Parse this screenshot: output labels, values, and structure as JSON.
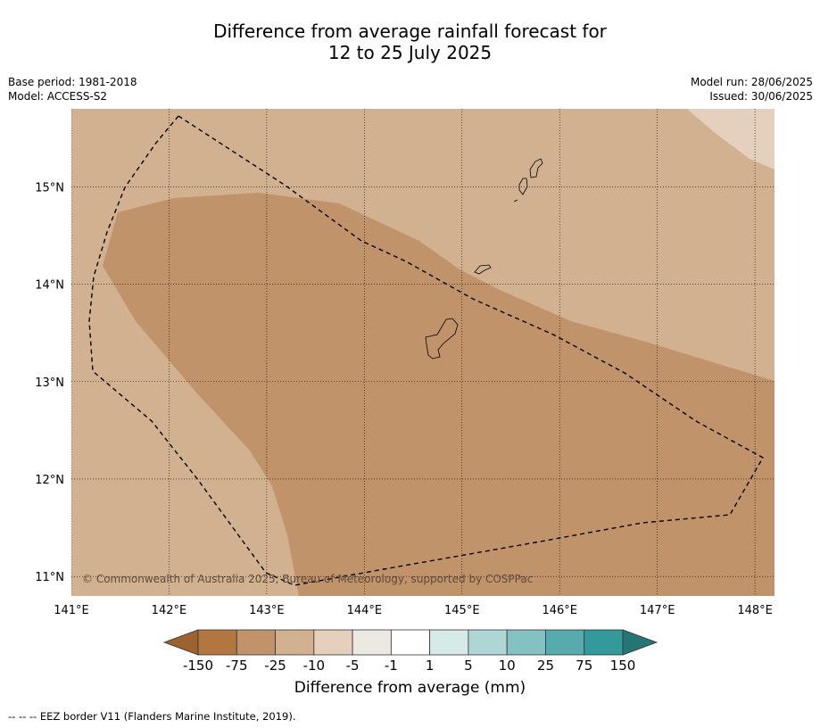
{
  "title": {
    "line1": "Difference from average rainfall forecast for",
    "line2": "12 to 25 July 2025"
  },
  "meta": {
    "base_period": "Base period: 1981-2018",
    "model": "Model: ACCESS-S2",
    "model_run": "Model run: 28/06/2025",
    "issued": "Issued: 30/06/2025"
  },
  "map": {
    "lon_range": [
      141.0,
      148.2
    ],
    "lat_range": [
      10.8,
      15.8
    ],
    "x_ticks": [
      "141°E",
      "142°E",
      "143°E",
      "144°E",
      "145°E",
      "146°E",
      "147°E",
      "148°E"
    ],
    "y_ticks": [
      "15°N",
      "14°N",
      "13°N",
      "12°N",
      "11°N"
    ],
    "copyright": "© Commonwealth of Australia 2025, Bureau of Meteorology, supported by COSPPac",
    "fill_colors": {
      "minus25_to_minus10": "#d2b191",
      "minus75_to_minus25": "#c0936a",
      "minus10_to_minus5": "#e4d0bd"
    }
  },
  "colorbar": {
    "ticks": [
      "-150",
      "-75",
      "-25",
      "-10",
      "-5",
      "-1",
      "1",
      "5",
      "10",
      "25",
      "75",
      "150"
    ],
    "colors": [
      "#9c6230",
      "#b27740",
      "#c0936a",
      "#d2b191",
      "#e4d0bd",
      "#eee8e3",
      "#ffffff",
      "#d6eaea",
      "#add6d5",
      "#84c1c2",
      "#58abad",
      "#33999a",
      "#267575"
    ],
    "label": "Difference from average (mm)"
  },
  "footnote": "--  --  -- EEZ border V11 (Flanders Marine Institute, 2019)."
}
